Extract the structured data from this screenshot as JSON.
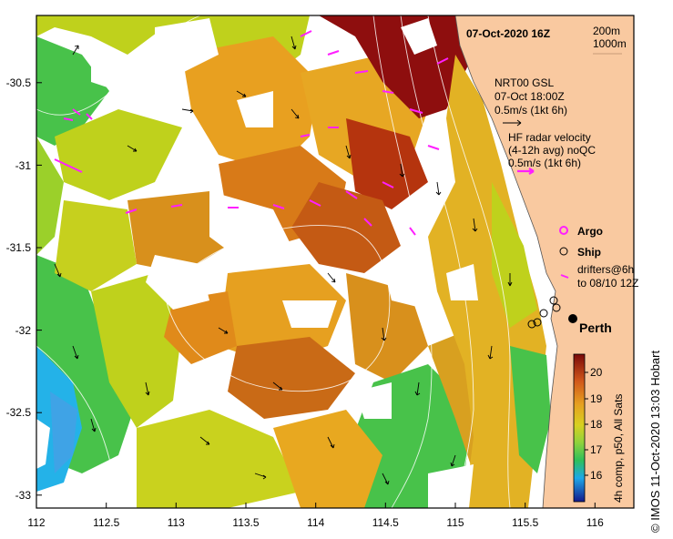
{
  "header": {
    "date_label": "07-Oct-2020 16Z",
    "contour_200": "200m",
    "contour_1000": "1000m"
  },
  "legend": {
    "nrt_title": "NRT00 GSL",
    "nrt_time": "07-Oct 18:00Z",
    "nrt_scale": "0.5m/s (1kt 6h)",
    "hf_title": "HF radar velocity",
    "hf_sub": "(4-12h avg) noQC",
    "hf_scale": "0.5m/s (1kt 6h)",
    "argo": "Argo",
    "ship": "Ship",
    "drifters_1": "drifters@6h",
    "drifters_2": "to 08/10 12Z",
    "city": "Perth"
  },
  "colorbar": {
    "ticks": [
      "20",
      "19",
      "18",
      "17",
      "16"
    ],
    "caption": "4h comp, p50, All Sats"
  },
  "credit": "© IMOS 11-Oct-2020 13:03 Hobart",
  "map": {
    "x_ticks": [
      "112",
      "112.5",
      "113",
      "113.5",
      "114",
      "114.5",
      "115",
      "115.5",
      "116"
    ],
    "y_ticks": [
      "-30.5",
      "-31",
      "-31.5",
      "-32",
      "-32.5",
      "-33"
    ],
    "lon_range": [
      112,
      116.3
    ],
    "lat_range": [
      -33.15,
      -30.05
    ],
    "colors": {
      "land": "#f9c9a0",
      "sst_20": "#8e0e0e",
      "sst_19": "#d87a18",
      "sst_18": "#bfd11c",
      "sst_17": "#48c24a",
      "sst_16": "#24b2e8",
      "hf_radar": "#ff1fff",
      "frame": "#000000"
    }
  }
}
